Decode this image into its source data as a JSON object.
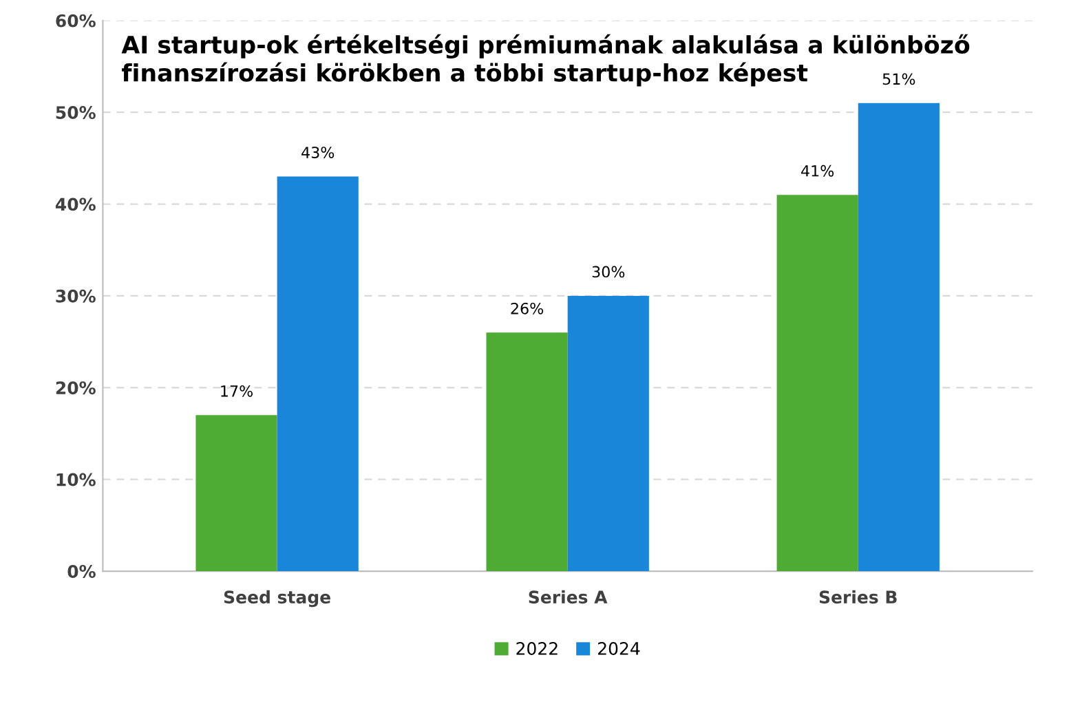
{
  "chart_data": {
    "type": "bar",
    "title": "AI startup-ok értékeltségi prémiumának alakulása a különböző finanszírozási körökben a többi startup-hoz képest",
    "categories": [
      "Seed stage",
      "Series A",
      "Series B"
    ],
    "series": [
      {
        "name": "2022",
        "color": "#4eac34",
        "values": [
          17,
          26,
          41
        ],
        "value_labels": [
          "17%",
          "26%",
          "41%"
        ]
      },
      {
        "name": "2024",
        "color": "#1a86d9",
        "values": [
          43,
          30,
          51
        ],
        "value_labels": [
          "43%",
          "30%",
          "51%"
        ]
      }
    ],
    "ylim": [
      0,
      60
    ],
    "yticks": [
      {
        "value": 0,
        "label": "0%"
      },
      {
        "value": 10,
        "label": "10%"
      },
      {
        "value": 20,
        "label": "20%"
      },
      {
        "value": 30,
        "label": "30%"
      },
      {
        "value": 40,
        "label": "40%"
      },
      {
        "value": 50,
        "label": "50%"
      },
      {
        "value": 60,
        "label": "60%"
      }
    ],
    "grid": "y",
    "legend": "bottom"
  }
}
